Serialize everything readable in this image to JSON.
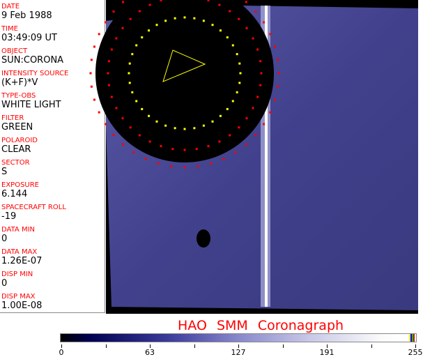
{
  "fields": [
    {
      "label": "DATE",
      "value": "9 Feb 1988"
    },
    {
      "label": "TIME",
      "value": "03:49:09 UT"
    },
    {
      "label": "OBJECT",
      "value": "SUN:CORONA"
    },
    {
      "label": "INTENSITY SOURCE",
      "value": "(K+F)*V"
    },
    {
      "label": "TYPE-OBS",
      "value": "WHITE LIGHT"
    },
    {
      "label": "FILTER",
      "value": "GREEN"
    },
    {
      "label": "POLAROID",
      "value": "CLEAR"
    },
    {
      "label": "SECTOR",
      "value": "S"
    },
    {
      "label": "EXPOSURE",
      "value": "6.144"
    },
    {
      "label": "SPACECRAFT ROLL",
      "value": "-19"
    },
    {
      "label": "DATA MIN",
      "value": "0"
    },
    {
      "label": "DATA MAX",
      "value": "1.26E-07"
    },
    {
      "label": "DISP MIN",
      "value": "0"
    },
    {
      "label": "DISP MAX",
      "value": "1.00E-08"
    }
  ],
  "title": "HAO  SMM Coronagraph",
  "colorbar": {
    "ticks": [
      "0",
      "63",
      "127",
      "191",
      "255"
    ],
    "colors": {
      "low": "#000000",
      "mid": "#8888cc",
      "high": "#ffffff"
    }
  }
}
